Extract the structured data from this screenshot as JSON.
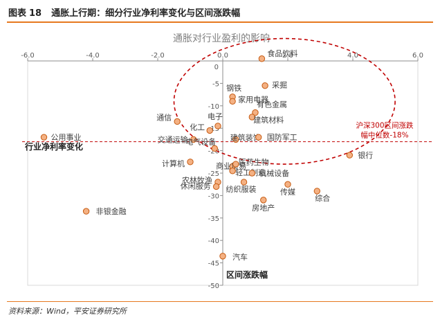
{
  "figure": {
    "label": "图表",
    "number": "18",
    "title": "通胀上行期：细分行业净利率变化与区间涨跌幅",
    "source": "资料来源：Wind，平安证券研究所"
  },
  "chart_data": {
    "type": "scatter",
    "title": "通胀对行业盈利的影响",
    "xlabel": "行业净利率变化",
    "ylabel": "区间涨跌幅",
    "xlim": [
      -6,
      6
    ],
    "ylim": [
      -50,
      0
    ],
    "x_ticks": [
      -6,
      -4,
      -2,
      0,
      2,
      4,
      6
    ],
    "y_ticks": [
      0,
      -5,
      -10,
      -15,
      -20,
      -25,
      -30,
      -35,
      -40,
      -45,
      -50
    ],
    "grid": false,
    "marker_color": "#f4b183",
    "marker_edge": "#c55a11",
    "points": [
      {
        "label": "食品饮料",
        "x": 1.2,
        "y": 0.5
      },
      {
        "label": "采掘",
        "x": 1.3,
        "y": -5.5
      },
      {
        "label": "钢铁",
        "x": 0.3,
        "y": -8.0
      },
      {
        "label": "家用电器",
        "x": 0.3,
        "y": -9.0
      },
      {
        "label": "有色金属",
        "x": 1.0,
        "y": -11.5
      },
      {
        "label": "建筑材料",
        "x": 0.9,
        "y": -12.5
      },
      {
        "label": "电子",
        "x": -0.15,
        "y": -14.5
      },
      {
        "label": "化工",
        "x": -0.4,
        "y": -15.5
      },
      {
        "label": "通信",
        "x": -1.4,
        "y": -13.5
      },
      {
        "label": "交通运输",
        "x": -0.9,
        "y": -17.5
      },
      {
        "label": "公用事业",
        "x": -5.5,
        "y": -17.0
      },
      {
        "label": "建筑装饰",
        "x": 0.4,
        "y": -17.5
      },
      {
        "label": "国防军工",
        "x": 1.1,
        "y": -17.0
      },
      {
        "label": "电气设备",
        "x": -0.25,
        "y": -19.5
      },
      {
        "label": "银行",
        "x": 3.9,
        "y": -21.0
      },
      {
        "label": "商业贸易",
        "x": 0.3,
        "y": -23.5
      },
      {
        "label": "计算机",
        "x": -1.0,
        "y": -22.5
      },
      {
        "label": "医药生物",
        "x": 0.4,
        "y": -23.0
      },
      {
        "label": "轻工制造",
        "x": 0.3,
        "y": -24.5
      },
      {
        "label": "机械设备",
        "x": 0.9,
        "y": -25.0
      },
      {
        "label": "农林牧渔",
        "x": -0.15,
        "y": -27.0
      },
      {
        "label": "休闲服务",
        "x": -0.2,
        "y": -28.0
      },
      {
        "label": "纺织服装",
        "x": 0.65,
        "y": -27.0
      },
      {
        "label": "传媒",
        "x": 2.0,
        "y": -27.5
      },
      {
        "label": "综合",
        "x": 2.9,
        "y": -29.0
      },
      {
        "label": "房地产",
        "x": 1.25,
        "y": -31.0
      },
      {
        "label": "非银金融",
        "x": -4.2,
        "y": -33.5
      },
      {
        "label": "汽车",
        "x": 0.0,
        "y": -43.5
      }
    ],
    "reference_line": {
      "y": -18,
      "color": "#c00000",
      "label_line1": "沪深300区间涨跌",
      "label_line2": "幅中位数-18%"
    },
    "highlight_ellipse": {
      "center_x": 1.9,
      "center_y": -9.0,
      "radius_x": 3.4,
      "radius_y": 14.0,
      "color": "#c00000"
    }
  }
}
